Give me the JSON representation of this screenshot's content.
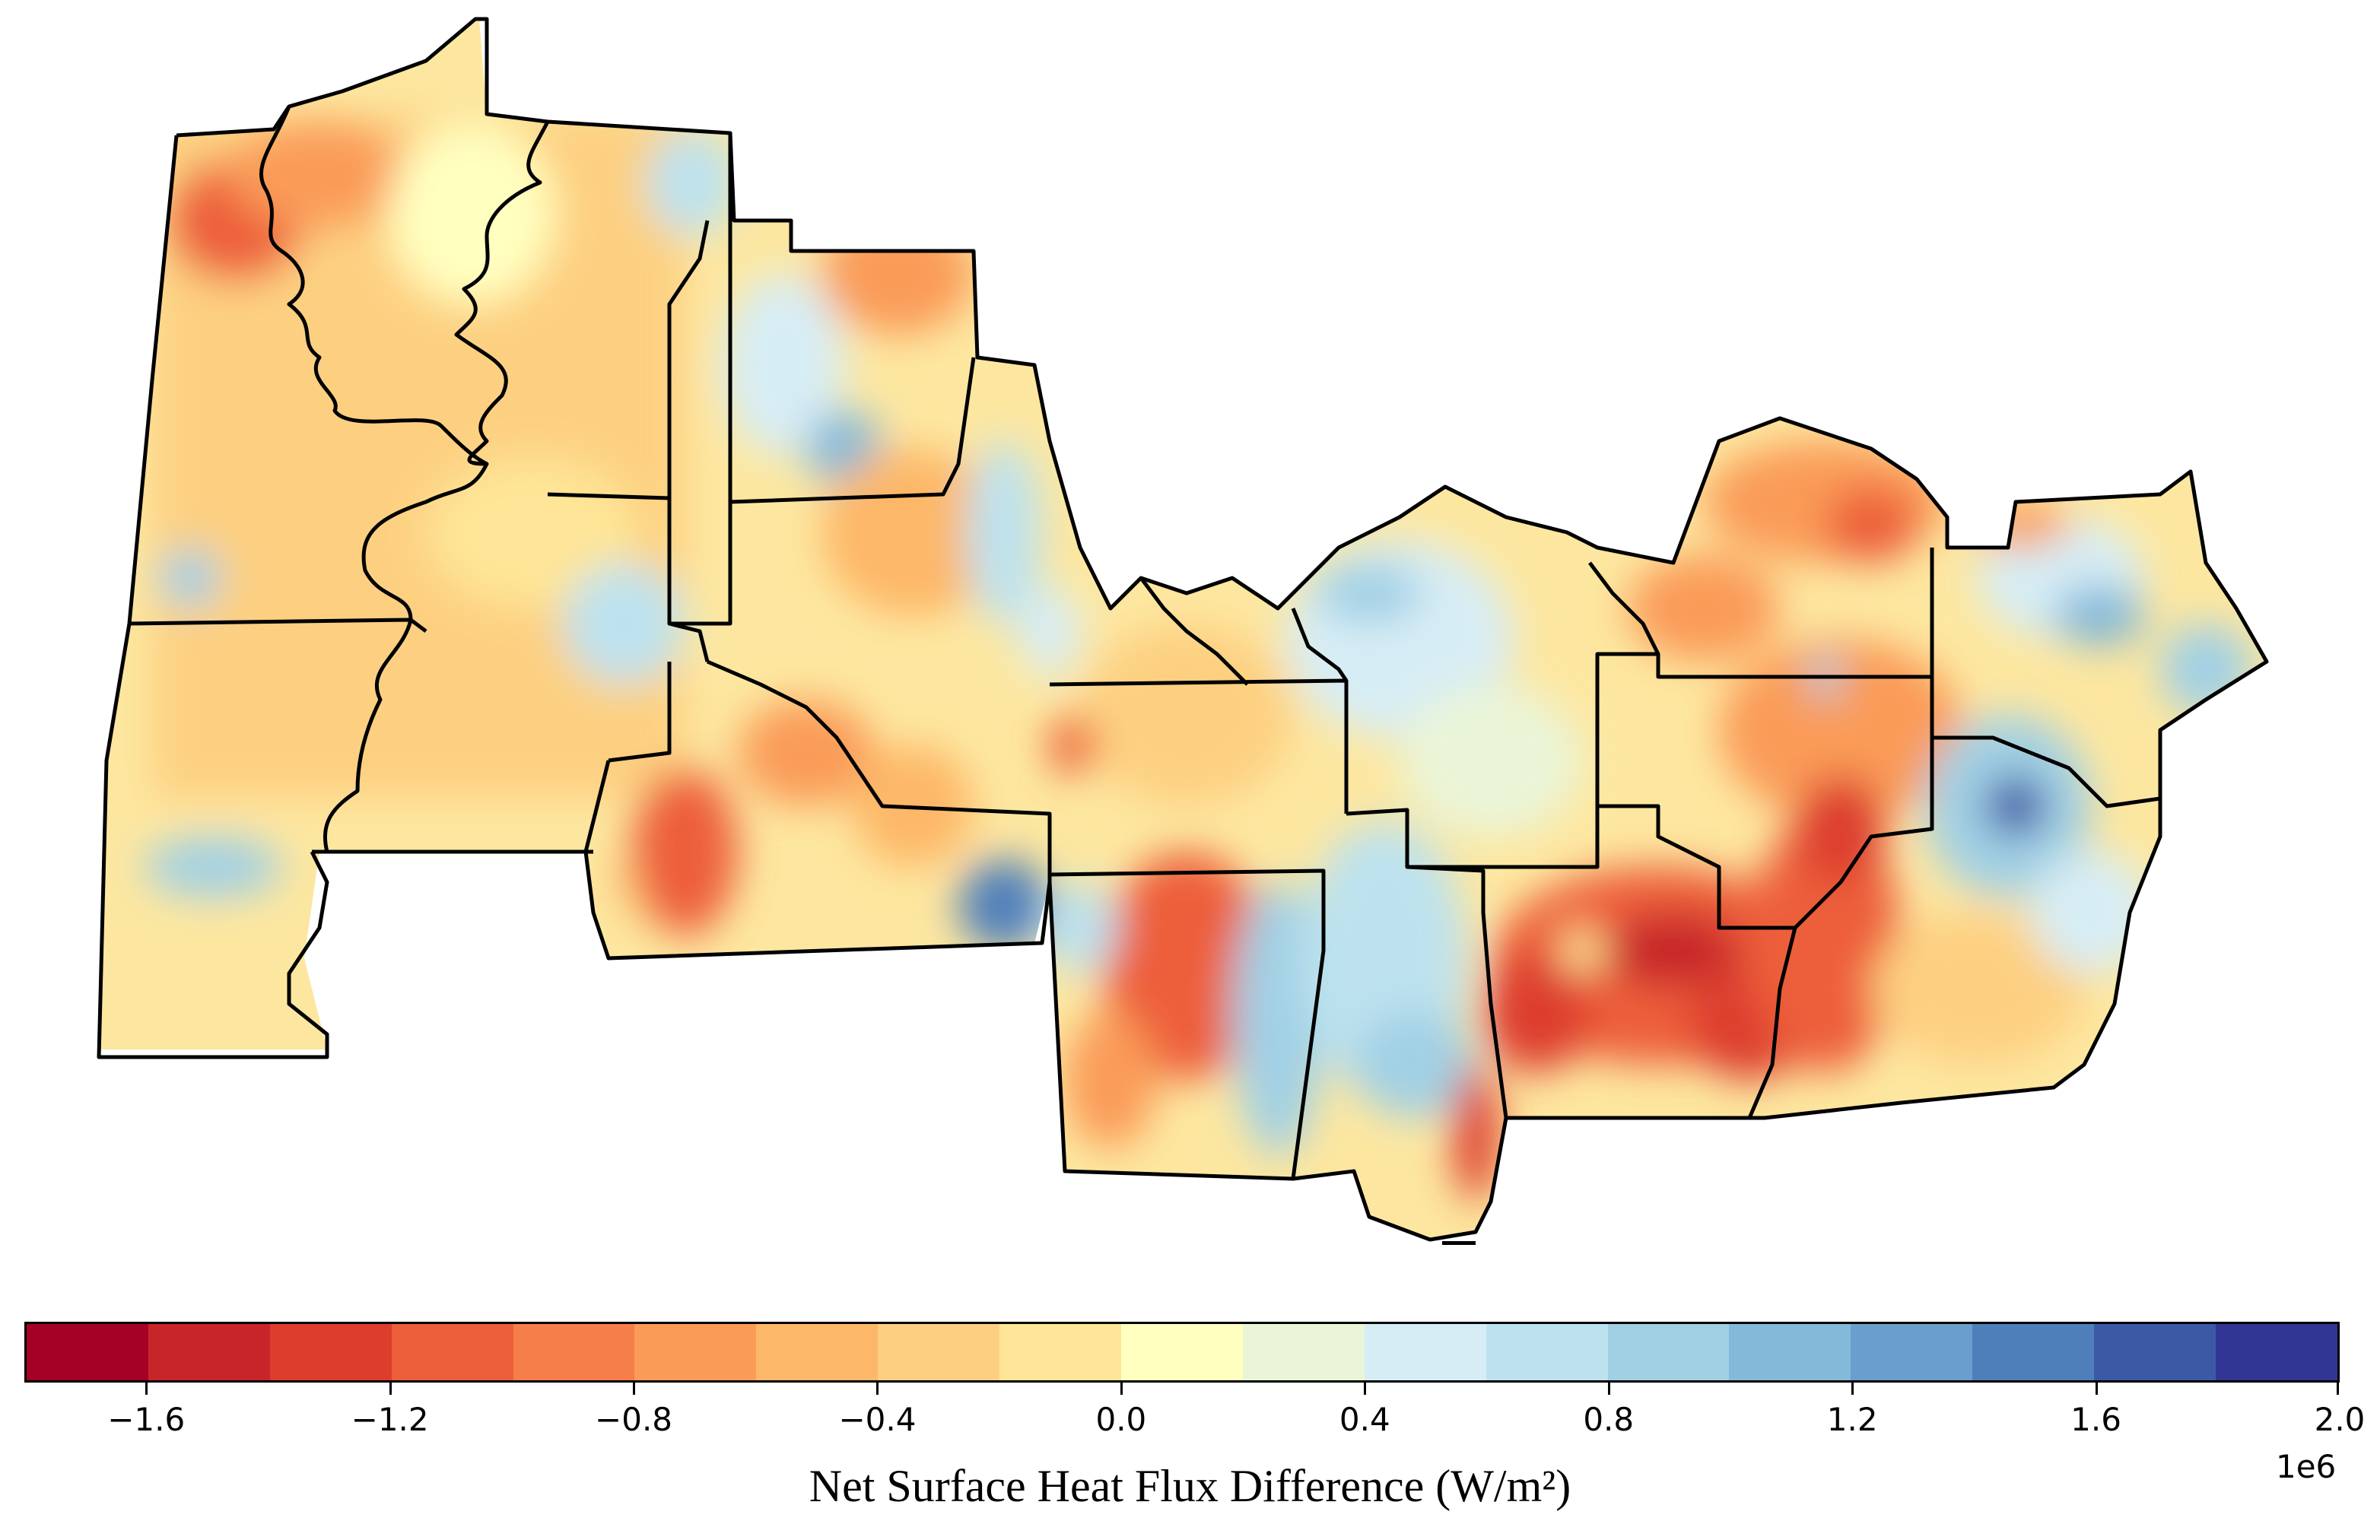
{
  "chart_data": {
    "type": "heatmap",
    "title": "",
    "colorbar": {
      "label": "Net Surface Heat Flux Difference (W/m²)",
      "scale_exponent": "1e6",
      "range": [
        -1.8,
        2.0
      ],
      "step": 0.2,
      "ticks": [
        -1.6,
        -1.2,
        -0.8,
        -0.4,
        0.0,
        0.4,
        0.8,
        1.2,
        1.6,
        2.0
      ],
      "tick_labels": [
        "−1.6",
        "−1.2",
        "−0.8",
        "−0.4",
        "0.0",
        "0.4",
        "0.8",
        "1.2",
        "1.6",
        "2.0"
      ],
      "colormap": "RdYlBu",
      "colors": [
        "#a50026",
        "#c8252b",
        "#dd3d2d",
        "#ed5f3b",
        "#f67e4b",
        "#fa9b58",
        "#fdb768",
        "#fdd081",
        "#fee597",
        "#ffffbf",
        "#eaf5d8",
        "#d7edf5",
        "#bde2ee",
        "#a1d0e5",
        "#84b9d9",
        "#6a9ecc",
        "#4f7fbb",
        "#3c59a6",
        "#313695"
      ]
    },
    "regions_note": ""
  }
}
